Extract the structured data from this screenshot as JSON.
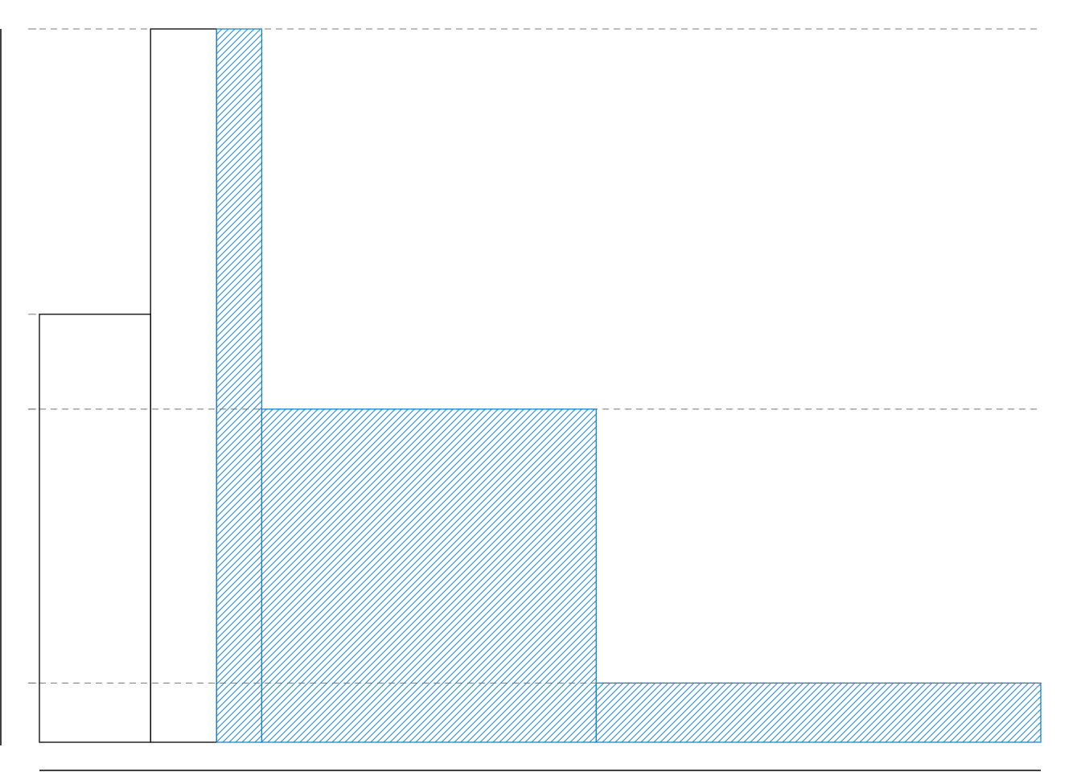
{
  "chart_data": {
    "type": "bar",
    "title": "",
    "xlabel": "",
    "ylabel": "",
    "xlim": [
      0,
      1
    ],
    "ylim": [
      0,
      1
    ],
    "grid": false,
    "series": [
      {
        "style": "outline",
        "color": "#000000",
        "bars": [
          {
            "x0": 0.0,
            "x1": 0.111,
            "value": 0.6
          },
          {
            "x0": 0.111,
            "x1": 0.177,
            "value": 1.0
          }
        ]
      },
      {
        "style": "hatched",
        "color": "#1a85c9",
        "bars": [
          {
            "x0": 0.177,
            "x1": 0.222,
            "value": 1.0
          },
          {
            "x0": 0.222,
            "x1": 0.556,
            "value": 0.467
          },
          {
            "x0": 0.556,
            "x1": 1.0,
            "value": 0.083
          }
        ]
      }
    ],
    "reference_lines": [
      1.0,
      0.467,
      0.083
    ],
    "tick_marks": [
      1.0,
      0.6,
      0.467,
      0.083
    ]
  }
}
